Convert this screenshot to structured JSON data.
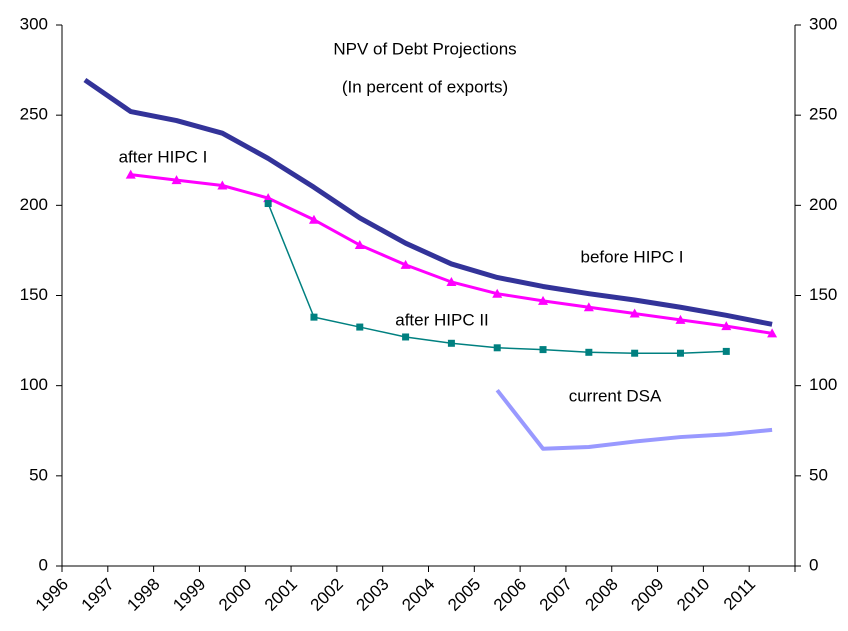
{
  "chart_data": {
    "type": "line",
    "title": "NPV of Debt Projections",
    "subtitle": "(In percent of exports)",
    "categories": [
      "1996",
      "1997",
      "1998",
      "1999",
      "2000",
      "2001",
      "2002",
      "2003",
      "2004",
      "2005",
      "2006",
      "2007",
      "2008",
      "2009",
      "2010",
      "2011"
    ],
    "series": [
      {
        "name": "before HIPC I",
        "color": "#333399",
        "marker": "none",
        "width": 5,
        "values": [
          269.5,
          252,
          247,
          240,
          226,
          210,
          193,
          179,
          167.5,
          160,
          155,
          151,
          147.5,
          143.5,
          139,
          134
        ]
      },
      {
        "name": "after HIPC I",
        "color": "#ff00ff",
        "marker": "triangle",
        "width": 3,
        "values": [
          null,
          217,
          214,
          211,
          204,
          192,
          178,
          167,
          157.5,
          151,
          147,
          143.5,
          140,
          136.5,
          133,
          129
        ]
      },
      {
        "name": "after HIPC II",
        "color": "#008080",
        "marker": "square",
        "width": 1.5,
        "values": [
          null,
          null,
          null,
          null,
          201,
          138,
          132.5,
          127,
          123.5,
          121,
          120,
          118.5,
          118,
          118,
          119,
          null
        ]
      },
      {
        "name": "current DSA",
        "color": "#9999ff",
        "marker": "none",
        "width": 4,
        "values": [
          null,
          null,
          null,
          null,
          null,
          null,
          null,
          null,
          null,
          97.5,
          65,
          66,
          69,
          71.5,
          73,
          75.5
        ]
      }
    ],
    "ylim": [
      0,
      300
    ],
    "yticks": [
      0,
      50,
      100,
      150,
      200,
      250,
      300
    ],
    "y2lim": [
      0,
      300
    ],
    "y2ticks": [
      0,
      50,
      100,
      150,
      200,
      250,
      300
    ],
    "grid": false
  }
}
